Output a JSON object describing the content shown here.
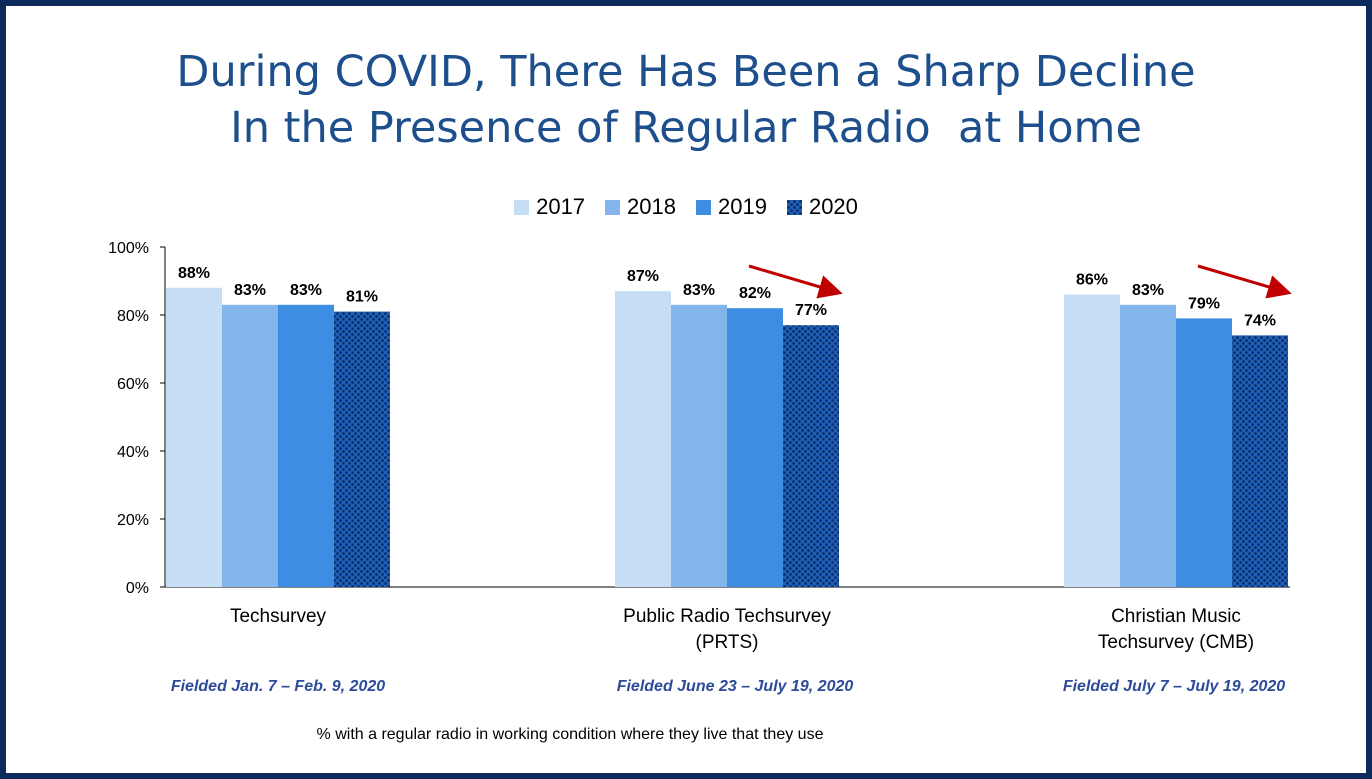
{
  "title_lines": [
    "During COVID, There Has Been a Sharp Decline",
    "In the Presence of Regular Radio  at Home"
  ],
  "footnote": "% with a regular radio in working condition where they live that they use",
  "field_notes": [
    "Fielded Jan. 7 – Feb. 9, 2020",
    "Fielded June 23 – July 19, 2020",
    "Fielded July 7 – July 19, 2020"
  ],
  "category_labels": [
    [
      "Techsurvey"
    ],
    [
      "Public Radio Techsurvey",
      "(PRTS)"
    ],
    [
      "Christian Music",
      "Techsurvey (CMB)"
    ]
  ],
  "colors": {
    "s2017": "#c5ddf5",
    "s2018": "#83b5ec",
    "s2019": "#3d8ee2",
    "s2020": "#1f5fb8",
    "arrow": "#c00000"
  },
  "chart_data": {
    "type": "bar",
    "title": "During COVID, There Has Been a Sharp Decline In the Presence of Regular Radio  at Home",
    "categories": [
      "Techsurvey",
      "Public Radio Techsurvey (PRTS)",
      "Christian Music Techsurvey (CMB)"
    ],
    "series": [
      {
        "name": "2017",
        "values": [
          88,
          87,
          86
        ]
      },
      {
        "name": "2018",
        "values": [
          83,
          83,
          83
        ]
      },
      {
        "name": "2019",
        "values": [
          83,
          82,
          79
        ]
      },
      {
        "name": "2020",
        "values": [
          81,
          77,
          74
        ]
      }
    ],
    "value_labels": {
      "2017": [
        "88%",
        "87%",
        "86%"
      ],
      "2018": [
        "83%",
        "83%",
        "83%"
      ],
      "2019": [
        "83%",
        "82%",
        "79%"
      ],
      "2020": [
        "81%",
        "77%",
        "74%"
      ]
    },
    "ylim": [
      0,
      100
    ],
    "yticks": [
      0,
      20,
      40,
      60,
      80,
      100
    ],
    "ytick_labels": [
      "0%",
      "20%",
      "40%",
      "60%",
      "80%",
      "100%"
    ],
    "xlabel": "",
    "ylabel": "",
    "grid": false,
    "legend": "top-center",
    "decline_arrows_on_categories": [
      1,
      2
    ]
  }
}
